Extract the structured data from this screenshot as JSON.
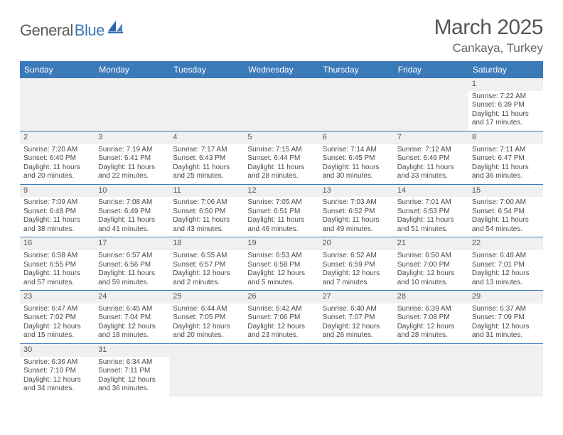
{
  "logo": {
    "part1": "General",
    "part2": "Blue",
    "brand_color": "#3a7ab8"
  },
  "title": "March 2025",
  "location": "Cankaya, Turkey",
  "day_names": [
    "Sunday",
    "Monday",
    "Tuesday",
    "Wednesday",
    "Thursday",
    "Friday",
    "Saturday"
  ],
  "header_bg": "#3a7ab8",
  "weeks": [
    [
      null,
      null,
      null,
      null,
      null,
      null,
      {
        "d": "1",
        "sr": "7:22 AM",
        "ss": "6:39 PM",
        "dl": "11 hours and 17 minutes."
      }
    ],
    [
      {
        "d": "2",
        "sr": "7:20 AM",
        "ss": "6:40 PM",
        "dl": "11 hours and 20 minutes."
      },
      {
        "d": "3",
        "sr": "7:19 AM",
        "ss": "6:41 PM",
        "dl": "11 hours and 22 minutes."
      },
      {
        "d": "4",
        "sr": "7:17 AM",
        "ss": "6:43 PM",
        "dl": "11 hours and 25 minutes."
      },
      {
        "d": "5",
        "sr": "7:15 AM",
        "ss": "6:44 PM",
        "dl": "11 hours and 28 minutes."
      },
      {
        "d": "6",
        "sr": "7:14 AM",
        "ss": "6:45 PM",
        "dl": "11 hours and 30 minutes."
      },
      {
        "d": "7",
        "sr": "7:12 AM",
        "ss": "6:46 PM",
        "dl": "11 hours and 33 minutes."
      },
      {
        "d": "8",
        "sr": "7:11 AM",
        "ss": "6:47 PM",
        "dl": "11 hours and 36 minutes."
      }
    ],
    [
      {
        "d": "9",
        "sr": "7:09 AM",
        "ss": "6:48 PM",
        "dl": "11 hours and 38 minutes."
      },
      {
        "d": "10",
        "sr": "7:08 AM",
        "ss": "6:49 PM",
        "dl": "11 hours and 41 minutes."
      },
      {
        "d": "11",
        "sr": "7:06 AM",
        "ss": "6:50 PM",
        "dl": "11 hours and 43 minutes."
      },
      {
        "d": "12",
        "sr": "7:05 AM",
        "ss": "6:51 PM",
        "dl": "11 hours and 46 minutes."
      },
      {
        "d": "13",
        "sr": "7:03 AM",
        "ss": "6:52 PM",
        "dl": "11 hours and 49 minutes."
      },
      {
        "d": "14",
        "sr": "7:01 AM",
        "ss": "6:53 PM",
        "dl": "11 hours and 51 minutes."
      },
      {
        "d": "15",
        "sr": "7:00 AM",
        "ss": "6:54 PM",
        "dl": "11 hours and 54 minutes."
      }
    ],
    [
      {
        "d": "16",
        "sr": "6:58 AM",
        "ss": "6:55 PM",
        "dl": "11 hours and 57 minutes."
      },
      {
        "d": "17",
        "sr": "6:57 AM",
        "ss": "6:56 PM",
        "dl": "11 hours and 59 minutes."
      },
      {
        "d": "18",
        "sr": "6:55 AM",
        "ss": "6:57 PM",
        "dl": "12 hours and 2 minutes."
      },
      {
        "d": "19",
        "sr": "6:53 AM",
        "ss": "6:58 PM",
        "dl": "12 hours and 5 minutes."
      },
      {
        "d": "20",
        "sr": "6:52 AM",
        "ss": "6:59 PM",
        "dl": "12 hours and 7 minutes."
      },
      {
        "d": "21",
        "sr": "6:50 AM",
        "ss": "7:00 PM",
        "dl": "12 hours and 10 minutes."
      },
      {
        "d": "22",
        "sr": "6:48 AM",
        "ss": "7:01 PM",
        "dl": "12 hours and 13 minutes."
      }
    ],
    [
      {
        "d": "23",
        "sr": "6:47 AM",
        "ss": "7:02 PM",
        "dl": "12 hours and 15 minutes."
      },
      {
        "d": "24",
        "sr": "6:45 AM",
        "ss": "7:04 PM",
        "dl": "12 hours and 18 minutes."
      },
      {
        "d": "25",
        "sr": "6:44 AM",
        "ss": "7:05 PM",
        "dl": "12 hours and 20 minutes."
      },
      {
        "d": "26",
        "sr": "6:42 AM",
        "ss": "7:06 PM",
        "dl": "12 hours and 23 minutes."
      },
      {
        "d": "27",
        "sr": "6:40 AM",
        "ss": "7:07 PM",
        "dl": "12 hours and 26 minutes."
      },
      {
        "d": "28",
        "sr": "6:39 AM",
        "ss": "7:08 PM",
        "dl": "12 hours and 28 minutes."
      },
      {
        "d": "29",
        "sr": "6:37 AM",
        "ss": "7:09 PM",
        "dl": "12 hours and 31 minutes."
      }
    ],
    [
      {
        "d": "30",
        "sr": "6:36 AM",
        "ss": "7:10 PM",
        "dl": "12 hours and 34 minutes."
      },
      {
        "d": "31",
        "sr": "6:34 AM",
        "ss": "7:11 PM",
        "dl": "12 hours and 36 minutes."
      },
      null,
      null,
      null,
      null,
      null
    ]
  ],
  "labels": {
    "sunrise": "Sunrise:",
    "sunset": "Sunset:",
    "daylight": "Daylight:"
  }
}
